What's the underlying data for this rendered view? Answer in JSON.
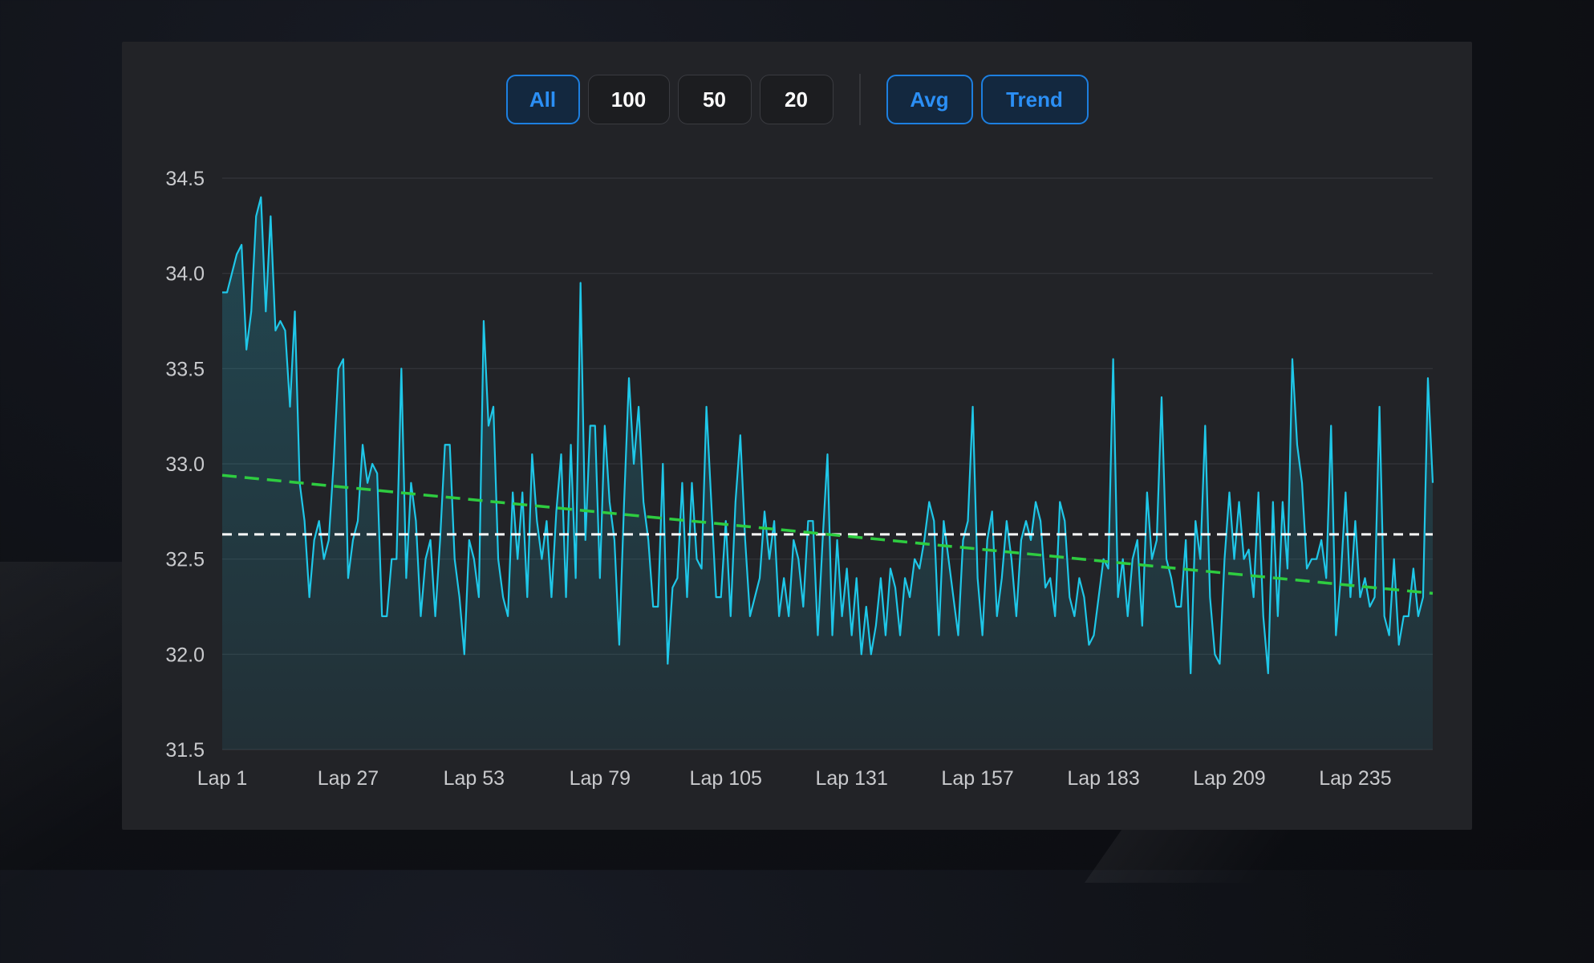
{
  "toolbar": {
    "ranges": [
      "All",
      "100",
      "50",
      "20"
    ],
    "active_range": "All",
    "avg_label": "Avg",
    "trend_label": "Trend",
    "avg_active": true,
    "trend_active": true
  },
  "colors": {
    "line": "#1fc7e8",
    "avg": "#ffffff",
    "trend": "#2ecc40",
    "accent": "#1d7fe0"
  },
  "chart_data": {
    "type": "line",
    "ylim": [
      31.5,
      34.5
    ],
    "yticks": [
      "34.5",
      "34.0",
      "33.5",
      "33.0",
      "32.5",
      "32.0",
      "31.5"
    ],
    "xticks": [
      "Lap 1",
      "Lap 27",
      "Lap 53",
      "Lap 79",
      "Lap 105",
      "Lap 131",
      "Lap 157",
      "Lap 183",
      "Lap 209",
      "Lap 235"
    ],
    "lap_count": 256,
    "avg": 32.63,
    "trend": [
      32.94,
      32.32
    ],
    "grid": true,
    "series": [
      {
        "values": [
          33.9,
          33.9,
          34.0,
          34.1,
          34.15,
          33.6,
          33.8,
          34.3,
          34.4,
          33.8,
          34.3,
          33.7,
          33.75,
          33.7,
          33.3,
          33.8,
          32.9,
          32.7,
          32.3,
          32.6,
          32.7,
          32.5,
          32.6,
          33.0,
          33.5,
          33.55,
          32.4,
          32.6,
          32.7,
          33.1,
          32.9,
          33.0,
          32.95,
          32.2,
          32.2,
          32.5,
          32.5,
          33.5,
          32.4,
          32.9,
          32.7,
          32.2,
          32.5,
          32.6,
          32.2,
          32.6,
          33.1,
          33.1,
          32.5,
          32.3,
          32.0,
          32.6,
          32.5,
          32.3,
          33.75,
          33.2,
          33.3,
          32.5,
          32.3,
          32.2,
          32.85,
          32.5,
          32.85,
          32.3,
          33.05,
          32.7,
          32.5,
          32.7,
          32.3,
          32.75,
          33.05,
          32.3,
          33.1,
          32.4,
          33.95,
          32.6,
          33.2,
          33.2,
          32.4,
          33.2,
          32.8,
          32.6,
          32.05,
          32.8,
          33.45,
          33.0,
          33.3,
          32.8,
          32.6,
          32.25,
          32.25,
          33.0,
          31.95,
          32.35,
          32.4,
          32.9,
          32.3,
          32.9,
          32.5,
          32.45,
          33.3,
          32.8,
          32.3,
          32.3,
          32.7,
          32.2,
          32.8,
          33.15,
          32.6,
          32.2,
          32.3,
          32.4,
          32.75,
          32.5,
          32.7,
          32.2,
          32.4,
          32.2,
          32.6,
          32.5,
          32.25,
          32.7,
          32.7,
          32.1,
          32.6,
          33.05,
          32.1,
          32.6,
          32.2,
          32.45,
          32.1,
          32.4,
          32.0,
          32.25,
          32.0,
          32.15,
          32.4,
          32.1,
          32.45,
          32.35,
          32.1,
          32.4,
          32.3,
          32.5,
          32.45,
          32.6,
          32.8,
          32.7,
          32.1,
          32.7,
          32.5,
          32.3,
          32.1,
          32.6,
          32.7,
          33.3,
          32.4,
          32.1,
          32.6,
          32.75,
          32.2,
          32.4,
          32.7,
          32.5,
          32.2,
          32.6,
          32.7,
          32.6,
          32.8,
          32.7,
          32.35,
          32.4,
          32.2,
          32.8,
          32.7,
          32.3,
          32.2,
          32.4,
          32.3,
          32.05,
          32.1,
          32.3,
          32.5,
          32.45,
          33.55,
          32.3,
          32.5,
          32.2,
          32.5,
          32.6,
          32.15,
          32.85,
          32.5,
          32.6,
          33.35,
          32.5,
          32.4,
          32.25,
          32.25,
          32.6,
          31.9,
          32.7,
          32.5,
          33.2,
          32.3,
          32.0,
          31.95,
          32.5,
          32.85,
          32.5,
          32.8,
          32.5,
          32.55,
          32.3,
          32.85,
          32.2,
          31.9,
          32.8,
          32.2,
          32.8,
          32.45,
          33.55,
          33.1,
          32.9,
          32.45,
          32.5,
          32.5,
          32.6,
          32.4,
          33.2,
          32.1,
          32.4,
          32.85,
          32.3,
          32.7,
          32.3,
          32.4,
          32.25,
          32.3,
          33.3,
          32.2,
          32.1,
          32.5,
          32.05,
          32.2,
          32.2,
          32.45,
          32.2,
          32.3,
          33.45,
          32.9
        ]
      }
    ]
  }
}
